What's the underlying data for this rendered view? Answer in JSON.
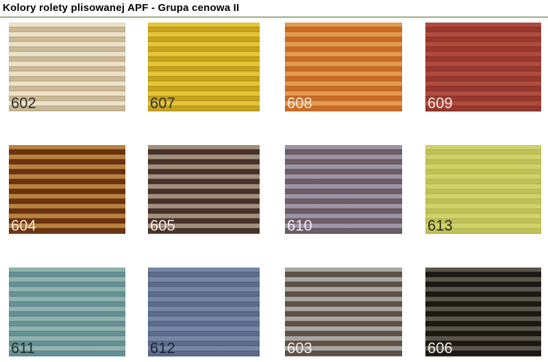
{
  "page": {
    "title": "Kolory rolety plisowanej APF - Grupa cenowa II",
    "divider_color": "#9cab85",
    "background_color": "#ffffff"
  },
  "swatches": [
    {
      "label": "602",
      "stripe_light": "#ebe2c8",
      "stripe_dark": "#cdb996",
      "stripe_edge": "#b3a07c",
      "label_color": "#2f2f2f"
    },
    {
      "label": "607",
      "stripe_light": "#e6c636",
      "stripe_dark": "#c8a41d",
      "stripe_edge": "#ac8e18",
      "label_color": "#2f2f2f"
    },
    {
      "label": "608",
      "stripe_light": "#e49b4d",
      "stripe_dark": "#cc6b26",
      "stripe_edge": "#b55e1f",
      "label_color": "#f2ead9"
    },
    {
      "label": "609",
      "stripe_light": "#b04b3d",
      "stripe_dark": "#98392f",
      "stripe_edge": "#862f27",
      "label_color": "#f4e9e2"
    },
    {
      "label": "604",
      "stripe_light": "#b9823f",
      "stripe_dark": "#6d3311",
      "stripe_edge": "#5a2a0d",
      "label_color": "#f4e9dc"
    },
    {
      "label": "605",
      "stripe_light": "#a28f7e",
      "stripe_dark": "#493229",
      "stripe_edge": "#392620",
      "label_color": "#f2ece4"
    },
    {
      "label": "610",
      "stripe_light": "#9d94a9",
      "stripe_dark": "#6e5e66",
      "stripe_edge": "#594b52",
      "label_color": "#f2eef2"
    },
    {
      "label": "613",
      "stripe_light": "#d1d269",
      "stripe_dark": "#c0c257",
      "stripe_edge": "#b1b34d",
      "label_color": "#2e2e28"
    },
    {
      "label": "611",
      "stripe_light": "#92b2ac",
      "stripe_dark": "#649298",
      "stripe_edge": "#537e85",
      "label_color": "#22302f"
    },
    {
      "label": "612",
      "stripe_light": "#7686a5",
      "stripe_dark": "#5e6c8d",
      "stripe_edge": "#4f5c7b",
      "label_color": "#1c2335"
    },
    {
      "label": "603",
      "stripe_light": "#a9a7a2",
      "stripe_dark": "#5f5247",
      "stripe_edge": "#4a4037",
      "label_color": "#f1efec"
    },
    {
      "label": "606",
      "stripe_light": "#5a554b",
      "stripe_dark": "#1d1a14",
      "stripe_edge": "#100f0b",
      "label_color": "#f0eee9"
    }
  ]
}
